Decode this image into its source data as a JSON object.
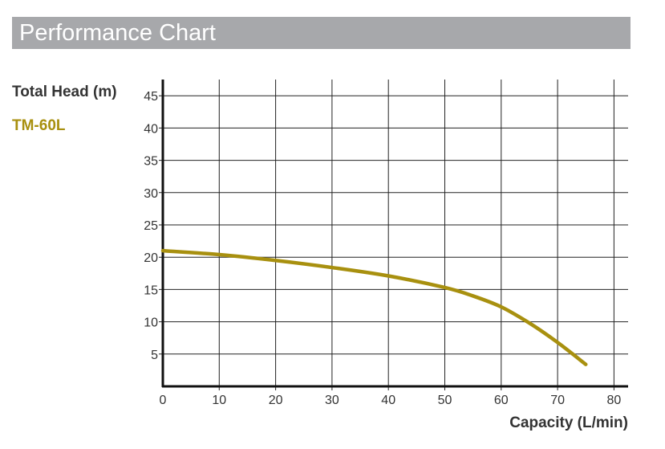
{
  "header": {
    "title": "Performance Chart"
  },
  "chart_data": {
    "type": "line",
    "title": "Performance Chart",
    "xlabel": "Capacity (L/min)",
    "ylabel": "Total Head (m)",
    "xlim": [
      0,
      80
    ],
    "ylim": [
      0,
      45
    ],
    "xticks": [
      "0",
      "10",
      "20",
      "30",
      "40",
      "50",
      "60",
      "70",
      "80"
    ],
    "yticks": [
      "5",
      "10",
      "15",
      "20",
      "25",
      "30",
      "35",
      "40",
      "45"
    ],
    "grid": true,
    "legend": "top-left",
    "series": [
      {
        "name": "TM-60L",
        "color": "#a8900f",
        "x": [
          0,
          10,
          20,
          30,
          40,
          50,
          55,
          60,
          65,
          70,
          75
        ],
        "y": [
          21,
          20.4,
          19.5,
          18.4,
          17.1,
          15.3,
          14.0,
          12.3,
          9.8,
          6.8,
          3.4
        ]
      }
    ]
  }
}
